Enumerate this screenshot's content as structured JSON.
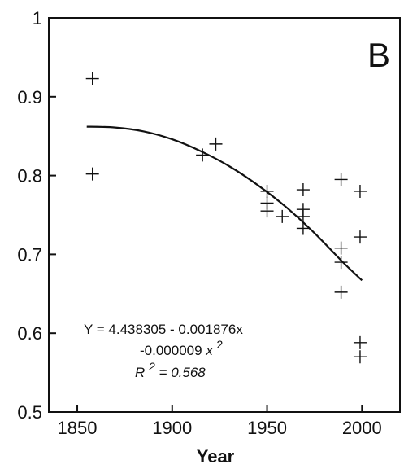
{
  "chart_data": {
    "type": "scatter",
    "panel_label": "B",
    "xlabel": "Year",
    "ylabel": "",
    "xlim": [
      1835,
      2020
    ],
    "ylim": [
      0.5,
      1.0
    ],
    "x_ticks": [
      1850,
      1900,
      1950,
      2000
    ],
    "x_tick_labels": [
      "1850",
      "1900",
      "1950",
      "2000"
    ],
    "y_ticks": [
      0.5,
      0.6,
      0.7,
      0.8,
      0.9,
      1.0
    ],
    "y_tick_labels": [
      "0.5",
      "0.6",
      "0.7",
      "0.8",
      "0.9",
      "1"
    ],
    "grid": false,
    "series": [
      {
        "marker": "plus",
        "points": [
          {
            "x": 1858,
            "y": 0.923
          },
          {
            "x": 1858,
            "y": 0.802
          },
          {
            "x": 1916,
            "y": 0.826
          },
          {
            "x": 1923,
            "y": 0.84
          },
          {
            "x": 1950,
            "y": 0.78
          },
          {
            "x": 1950,
            "y": 0.765
          },
          {
            "x": 1950,
            "y": 0.755
          },
          {
            "x": 1958,
            "y": 0.748
          },
          {
            "x": 1969,
            "y": 0.782
          },
          {
            "x": 1969,
            "y": 0.757
          },
          {
            "x": 1969,
            "y": 0.748
          },
          {
            "x": 1969,
            "y": 0.733
          },
          {
            "x": 1989,
            "y": 0.795
          },
          {
            "x": 1989,
            "y": 0.708
          },
          {
            "x": 1989,
            "y": 0.69
          },
          {
            "x": 1989,
            "y": 0.652
          },
          {
            "x": 1999,
            "y": 0.78
          },
          {
            "x": 1999,
            "y": 0.722
          },
          {
            "x": 1999,
            "y": 0.588
          },
          {
            "x": 1999,
            "y": 0.57
          }
        ]
      }
    ],
    "fit_curve": [
      {
        "x": 1855,
        "y": 0.862
      },
      {
        "x": 1870,
        "y": 0.861
      },
      {
        "x": 1885,
        "y": 0.856
      },
      {
        "x": 1900,
        "y": 0.846
      },
      {
        "x": 1915,
        "y": 0.831
      },
      {
        "x": 1930,
        "y": 0.812
      },
      {
        "x": 1945,
        "y": 0.788
      },
      {
        "x": 1960,
        "y": 0.76
      },
      {
        "x": 1975,
        "y": 0.727
      },
      {
        "x": 1990,
        "y": 0.69
      },
      {
        "x": 2000,
        "y": 0.667
      }
    ],
    "annotation": {
      "line1": "Y = 4.438305 - 0.001876x",
      "line2_coef": "-0.000009",
      "line2_var": "x",
      "line2_exp": "2",
      "line3_var": "R",
      "line3_exp": "2",
      "line3_value": " = 0.568"
    }
  }
}
